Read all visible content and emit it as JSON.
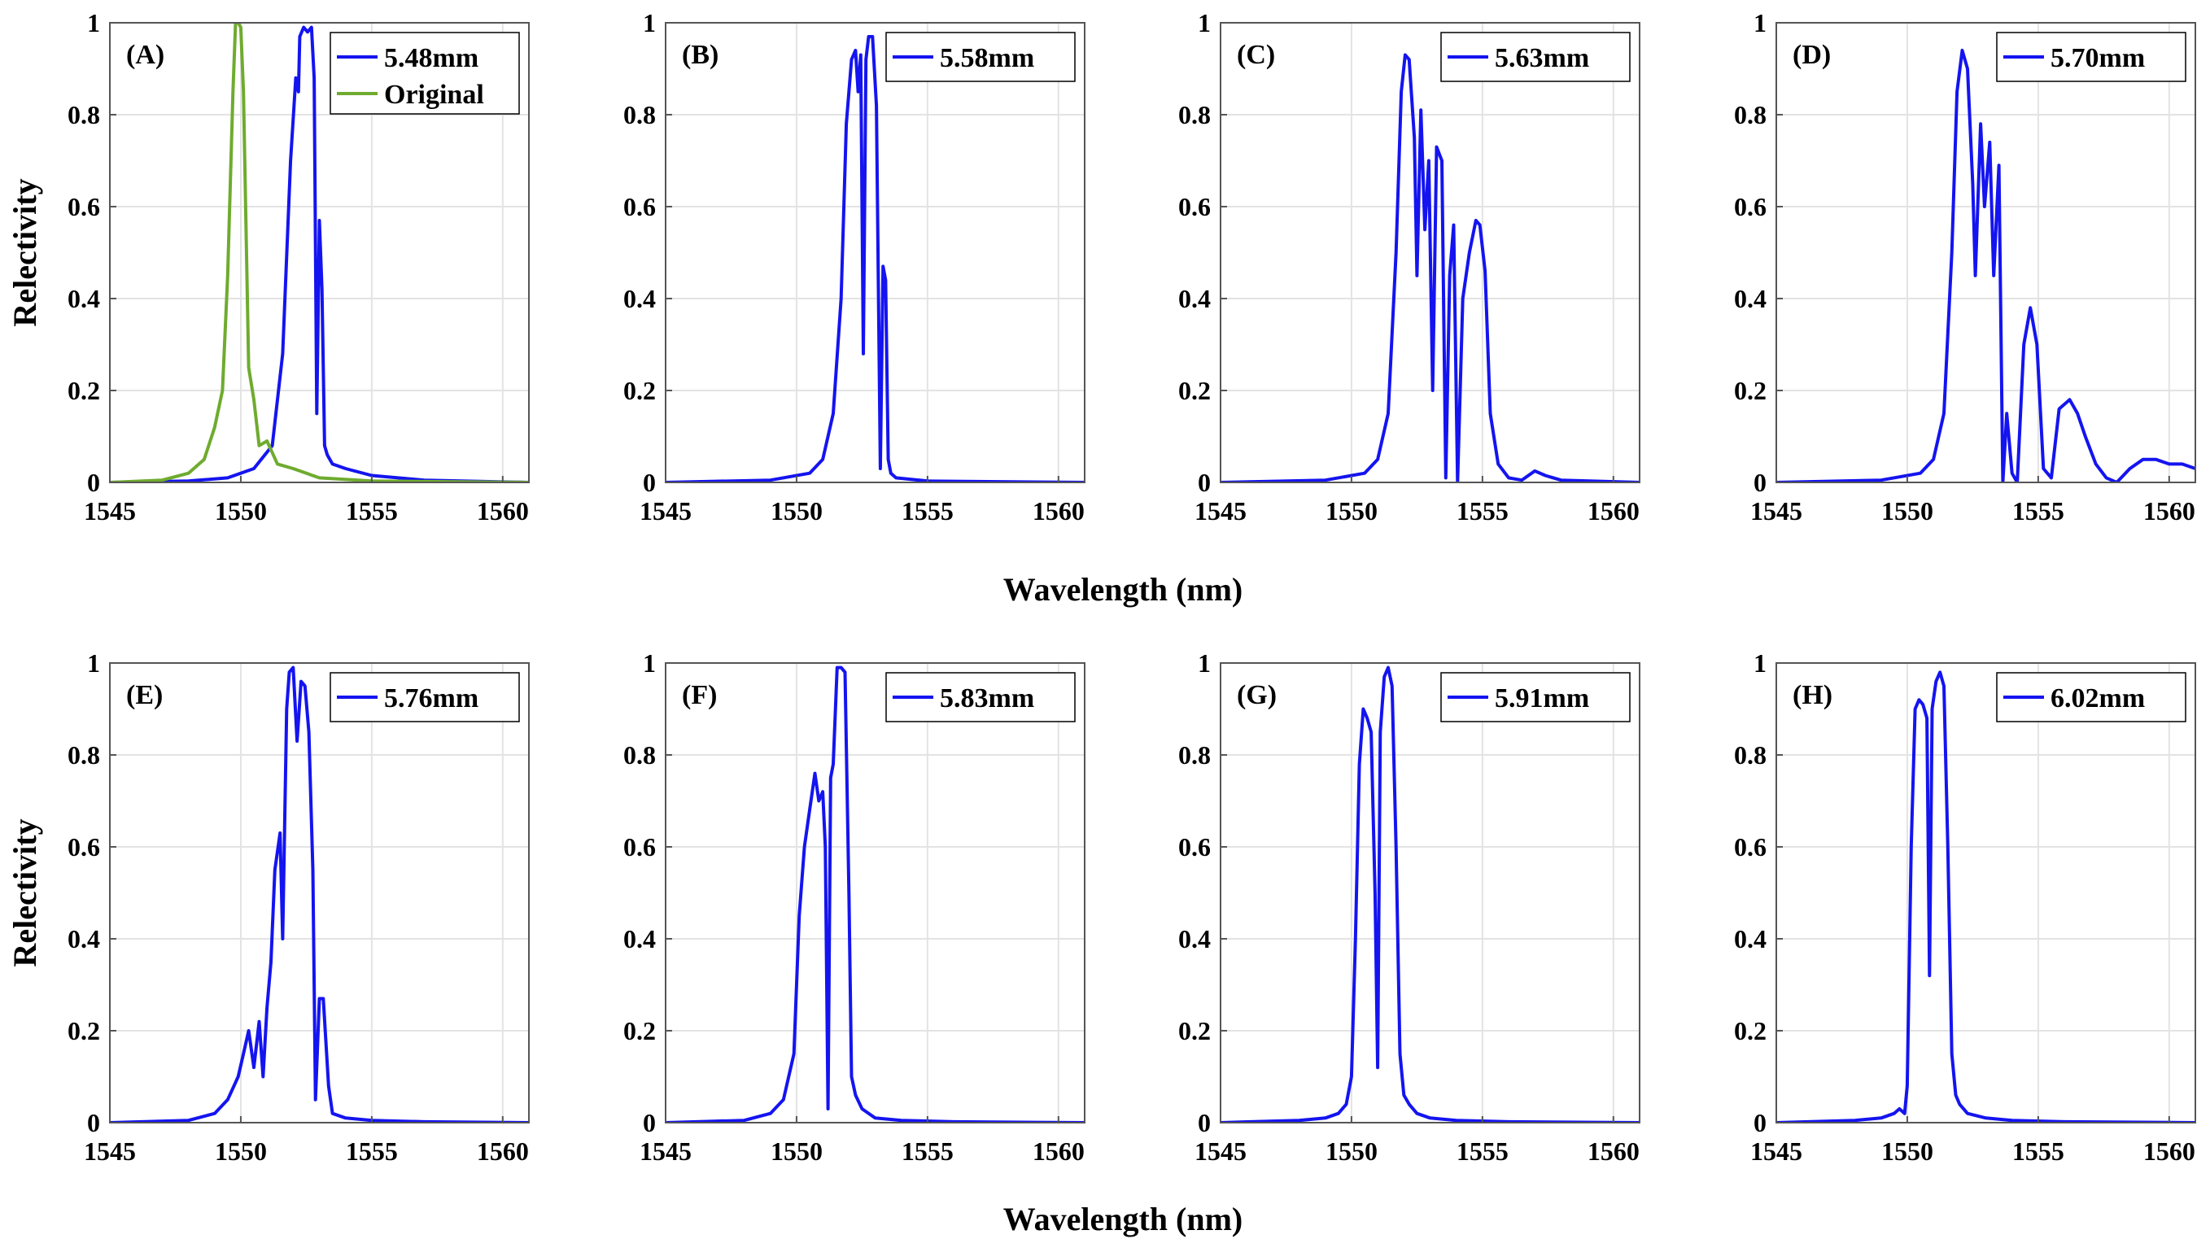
{
  "figure": {
    "shared_xlabel": "Wavelength (nm)",
    "shared_ylabel": "Relectivity"
  },
  "colors": {
    "blue": "#1414f0",
    "green": "#6fab2f",
    "grid": "#e3e3e3",
    "axis": "#555555"
  },
  "chart_data": [
    {
      "type": "line",
      "panel": "(A)",
      "xlim": [
        1545,
        1561
      ],
      "ylim": [
        0,
        1
      ],
      "xticks": [
        1545,
        1550,
        1555,
        1560
      ],
      "yticks": [
        0,
        0.2,
        0.4,
        0.6,
        0.8,
        1
      ],
      "xtick_labels": [
        "1545",
        "1550",
        "1555",
        "1560"
      ],
      "ytick_labels": [
        "0",
        "0.2",
        "0.4",
        "0.6",
        "0.8",
        "1"
      ],
      "xlabel": "Wavelength (nm)",
      "ylabel": "Relectivity",
      "grid": true,
      "legend": "top-right",
      "series": [
        {
          "name": "5.48mm",
          "color": "#1414f0",
          "x": [
            1545,
            1548,
            1549.5,
            1550.5,
            1551.2,
            1551.6,
            1551.9,
            1552.1,
            1552.2,
            1552.25,
            1552.4,
            1552.55,
            1552.7,
            1552.8,
            1552.9,
            1553.0,
            1553.1,
            1553.2,
            1553.3,
            1553.5,
            1554,
            1555,
            1557,
            1561
          ],
          "y": [
            0,
            0.003,
            0.01,
            0.03,
            0.08,
            0.28,
            0.7,
            0.88,
            0.85,
            0.97,
            0.99,
            0.98,
            0.99,
            0.88,
            0.15,
            0.57,
            0.42,
            0.08,
            0.06,
            0.04,
            0.03,
            0.015,
            0.005,
            0
          ]
        },
        {
          "name": "Original",
          "color": "#6fab2f",
          "x": [
            1545,
            1547,
            1548,
            1548.6,
            1549.0,
            1549.3,
            1549.5,
            1549.7,
            1549.8,
            1549.9,
            1550.0,
            1550.1,
            1550.2,
            1550.3,
            1550.5,
            1550.7,
            1551.0,
            1551.4,
            1552,
            1553,
            1555,
            1561
          ],
          "y": [
            0,
            0.005,
            0.02,
            0.05,
            0.12,
            0.2,
            0.45,
            0.85,
            1.0,
            1.0,
            0.99,
            0.85,
            0.55,
            0.25,
            0.18,
            0.08,
            0.09,
            0.04,
            0.03,
            0.01,
            0.003,
            0
          ]
        }
      ]
    },
    {
      "type": "line",
      "panel": "(B)",
      "xlim": [
        1545,
        1561
      ],
      "ylim": [
        0,
        1
      ],
      "xticks": [
        1545,
        1550,
        1555,
        1560
      ],
      "yticks": [
        0,
        0.2,
        0.4,
        0.6,
        0.8,
        1
      ],
      "xtick_labels": [
        "1545",
        "1550",
        "1555",
        "1560"
      ],
      "ytick_labels": [
        "0",
        "0.2",
        "0.4",
        "0.6",
        "0.8",
        "1"
      ],
      "xlabel": "Wavelength (nm)",
      "ylabel": "",
      "grid": true,
      "legend": "top-right",
      "series": [
        {
          "name": "5.58mm",
          "color": "#1414f0",
          "x": [
            1545,
            1549,
            1550.5,
            1551.0,
            1551.4,
            1551.7,
            1551.9,
            1552.1,
            1552.25,
            1552.35,
            1552.45,
            1552.55,
            1552.65,
            1552.75,
            1552.9,
            1553.05,
            1553.2,
            1553.3,
            1553.4,
            1553.5,
            1553.6,
            1553.8,
            1555,
            1561
          ],
          "y": [
            0,
            0.005,
            0.02,
            0.05,
            0.15,
            0.4,
            0.78,
            0.92,
            0.94,
            0.85,
            0.93,
            0.28,
            0.92,
            0.97,
            0.97,
            0.82,
            0.03,
            0.47,
            0.44,
            0.05,
            0.02,
            0.01,
            0.003,
            0
          ]
        }
      ]
    },
    {
      "type": "line",
      "panel": "(C)",
      "xlim": [
        1545,
        1561
      ],
      "ylim": [
        0,
        1
      ],
      "xticks": [
        1545,
        1550,
        1555,
        1560
      ],
      "yticks": [
        0,
        0.2,
        0.4,
        0.6,
        0.8,
        1
      ],
      "xtick_labels": [
        "1545",
        "1550",
        "1555",
        "1560"
      ],
      "ytick_labels": [
        "0",
        "0.2",
        "0.4",
        "0.6",
        "0.8",
        "1"
      ],
      "xlabel": "Wavelength (nm)",
      "ylabel": "",
      "grid": true,
      "legend": "top-right",
      "series": [
        {
          "name": "5.63mm",
          "color": "#1414f0",
          "x": [
            1545,
            1549,
            1550.5,
            1551.0,
            1551.4,
            1551.7,
            1551.9,
            1552.05,
            1552.2,
            1552.4,
            1552.5,
            1552.65,
            1552.8,
            1552.95,
            1553.1,
            1553.25,
            1553.45,
            1553.6,
            1553.75,
            1553.9,
            1554.05,
            1554.25,
            1554.5,
            1554.75,
            1554.9,
            1555.1,
            1555.3,
            1555.6,
            1556,
            1556.5,
            1557,
            1557.4,
            1558,
            1561
          ],
          "y": [
            0,
            0.005,
            0.02,
            0.05,
            0.15,
            0.5,
            0.85,
            0.93,
            0.92,
            0.75,
            0.45,
            0.81,
            0.55,
            0.7,
            0.2,
            0.73,
            0.7,
            0.01,
            0.45,
            0.56,
            0.0,
            0.4,
            0.5,
            0.57,
            0.56,
            0.46,
            0.15,
            0.04,
            0.01,
            0.005,
            0.025,
            0.015,
            0.005,
            0
          ]
        }
      ]
    },
    {
      "type": "line",
      "panel": "(D)",
      "xlim": [
        1545,
        1561
      ],
      "ylim": [
        0,
        1
      ],
      "xticks": [
        1545,
        1550,
        1555,
        1560
      ],
      "yticks": [
        0,
        0.2,
        0.4,
        0.6,
        0.8,
        1
      ],
      "xtick_labels": [
        "1545",
        "1550",
        "1555",
        "1560"
      ],
      "ytick_labels": [
        "0",
        "0.2",
        "0.4",
        "0.6",
        "0.8",
        "1"
      ],
      "xlabel": "Wavelength (nm)",
      "ylabel": "",
      "grid": true,
      "legend": "top-right",
      "series": [
        {
          "name": "5.70mm",
          "color": "#1414f0",
          "x": [
            1545,
            1549,
            1550.5,
            1551.0,
            1551.4,
            1551.7,
            1551.9,
            1552.1,
            1552.3,
            1552.5,
            1552.6,
            1552.8,
            1552.95,
            1553.15,
            1553.3,
            1553.5,
            1553.65,
            1553.8,
            1554.0,
            1554.2,
            1554.45,
            1554.7,
            1554.95,
            1555.2,
            1555.5,
            1555.8,
            1556.2,
            1556.5,
            1556.8,
            1557.2,
            1557.6,
            1558.0,
            1558.5,
            1559,
            1559.5,
            1560,
            1560.5,
            1561
          ],
          "y": [
            0,
            0.005,
            0.02,
            0.05,
            0.15,
            0.5,
            0.85,
            0.94,
            0.9,
            0.65,
            0.45,
            0.78,
            0.6,
            0.74,
            0.45,
            0.69,
            0.0,
            0.15,
            0.02,
            0.0,
            0.3,
            0.38,
            0.3,
            0.03,
            0.01,
            0.16,
            0.18,
            0.15,
            0.1,
            0.04,
            0.01,
            0.0,
            0.03,
            0.05,
            0.05,
            0.04,
            0.04,
            0.03
          ]
        }
      ]
    },
    {
      "type": "line",
      "panel": "(E)",
      "xlim": [
        1545,
        1561
      ],
      "ylim": [
        0,
        1
      ],
      "xticks": [
        1545,
        1550,
        1555,
        1560
      ],
      "yticks": [
        0,
        0.2,
        0.4,
        0.6,
        0.8,
        1
      ],
      "xtick_labels": [
        "1545",
        "1550",
        "1555",
        "1560"
      ],
      "ytick_labels": [
        "0",
        "0.2",
        "0.4",
        "0.6",
        "0.8",
        "1"
      ],
      "xlabel": "Wavelength (nm)",
      "ylabel": "Relectivity",
      "grid": true,
      "legend": "top-right",
      "series": [
        {
          "name": "5.76mm",
          "color": "#1414f0",
          "x": [
            1545,
            1548,
            1549,
            1549.5,
            1549.9,
            1550.1,
            1550.3,
            1550.5,
            1550.7,
            1550.85,
            1551.0,
            1551.15,
            1551.3,
            1551.5,
            1551.6,
            1551.75,
            1551.85,
            1552.0,
            1552.15,
            1552.3,
            1552.45,
            1552.6,
            1552.75,
            1552.85,
            1553.0,
            1553.15,
            1553.35,
            1553.5,
            1554,
            1555,
            1557,
            1561
          ],
          "y": [
            0,
            0.005,
            0.02,
            0.05,
            0.1,
            0.15,
            0.2,
            0.12,
            0.22,
            0.1,
            0.25,
            0.35,
            0.55,
            0.63,
            0.4,
            0.9,
            0.98,
            0.99,
            0.83,
            0.96,
            0.95,
            0.85,
            0.55,
            0.05,
            0.27,
            0.27,
            0.08,
            0.02,
            0.01,
            0.005,
            0.002,
            0
          ]
        }
      ]
    },
    {
      "type": "line",
      "panel": "(F)",
      "xlim": [
        1545,
        1561
      ],
      "ylim": [
        0,
        1
      ],
      "xticks": [
        1545,
        1550,
        1555,
        1560
      ],
      "yticks": [
        0,
        0.2,
        0.4,
        0.6,
        0.8,
        1
      ],
      "xtick_labels": [
        "1545",
        "1550",
        "1555",
        "1560"
      ],
      "ytick_labels": [
        "0",
        "0.2",
        "0.4",
        "0.6",
        "0.8",
        "1"
      ],
      "xlabel": "Wavelength (nm)",
      "ylabel": "",
      "grid": true,
      "legend": "top-right",
      "series": [
        {
          "name": "5.83mm",
          "color": "#1414f0",
          "x": [
            1545,
            1548,
            1549,
            1549.5,
            1549.9,
            1550.1,
            1550.3,
            1550.5,
            1550.7,
            1550.85,
            1551.0,
            1551.1,
            1551.2,
            1551.3,
            1551.4,
            1551.55,
            1551.7,
            1551.85,
            1552.0,
            1552.1,
            1552.25,
            1552.5,
            1553,
            1554,
            1556,
            1561
          ],
          "y": [
            0,
            0.005,
            0.02,
            0.05,
            0.15,
            0.45,
            0.6,
            0.68,
            0.76,
            0.7,
            0.72,
            0.6,
            0.03,
            0.75,
            0.78,
            0.99,
            0.99,
            0.98,
            0.5,
            0.1,
            0.06,
            0.03,
            0.01,
            0.005,
            0.002,
            0
          ]
        }
      ]
    },
    {
      "type": "line",
      "panel": "(G)",
      "xlim": [
        1545,
        1561
      ],
      "ylim": [
        0,
        1
      ],
      "xticks": [
        1545,
        1550,
        1555,
        1560
      ],
      "yticks": [
        0,
        0.2,
        0.4,
        0.6,
        0.8,
        1
      ],
      "xtick_labels": [
        "1545",
        "1550",
        "1555",
        "1560"
      ],
      "ytick_labels": [
        "0",
        "0.2",
        "0.4",
        "0.6",
        "0.8",
        "1"
      ],
      "xlabel": "Wavelength (nm)",
      "ylabel": "",
      "grid": true,
      "legend": "top-right",
      "series": [
        {
          "name": "5.91mm",
          "color": "#1414f0",
          "x": [
            1545,
            1548,
            1549,
            1549.5,
            1549.8,
            1550.0,
            1550.15,
            1550.3,
            1550.45,
            1550.6,
            1550.75,
            1550.9,
            1551.0,
            1551.1,
            1551.25,
            1551.4,
            1551.55,
            1551.7,
            1551.85,
            1552.0,
            1552.2,
            1552.5,
            1553,
            1554,
            1556,
            1561
          ],
          "y": [
            0,
            0.005,
            0.01,
            0.02,
            0.04,
            0.1,
            0.4,
            0.78,
            0.9,
            0.88,
            0.85,
            0.5,
            0.12,
            0.85,
            0.97,
            0.99,
            0.95,
            0.6,
            0.15,
            0.06,
            0.04,
            0.02,
            0.01,
            0.005,
            0.002,
            0
          ]
        }
      ]
    },
    {
      "type": "line",
      "panel": "(H)",
      "xlim": [
        1545,
        1561
      ],
      "ylim": [
        0,
        1
      ],
      "xticks": [
        1545,
        1550,
        1555,
        1560
      ],
      "yticks": [
        0,
        0.2,
        0.4,
        0.6,
        0.8,
        1
      ],
      "xtick_labels": [
        "1545",
        "1550",
        "1555",
        "1560"
      ],
      "ytick_labels": [
        "0",
        "0.2",
        "0.4",
        "0.6",
        "0.8",
        "1"
      ],
      "xlabel": "Wavelength (nm)",
      "ylabel": "",
      "grid": true,
      "legend": "top-right",
      "series": [
        {
          "name": "6.02mm",
          "color": "#1414f0",
          "x": [
            1545,
            1548,
            1549,
            1549.5,
            1549.7,
            1549.9,
            1550.0,
            1550.15,
            1550.3,
            1550.45,
            1550.6,
            1550.75,
            1550.85,
            1550.95,
            1551.1,
            1551.25,
            1551.4,
            1551.55,
            1551.7,
            1551.85,
            1552.0,
            1552.3,
            1553,
            1554,
            1556,
            1561
          ],
          "y": [
            0,
            0.005,
            0.01,
            0.02,
            0.03,
            0.02,
            0.08,
            0.6,
            0.9,
            0.92,
            0.91,
            0.88,
            0.32,
            0.9,
            0.96,
            0.98,
            0.95,
            0.6,
            0.15,
            0.06,
            0.04,
            0.02,
            0.01,
            0.005,
            0.002,
            0
          ]
        }
      ]
    }
  ]
}
